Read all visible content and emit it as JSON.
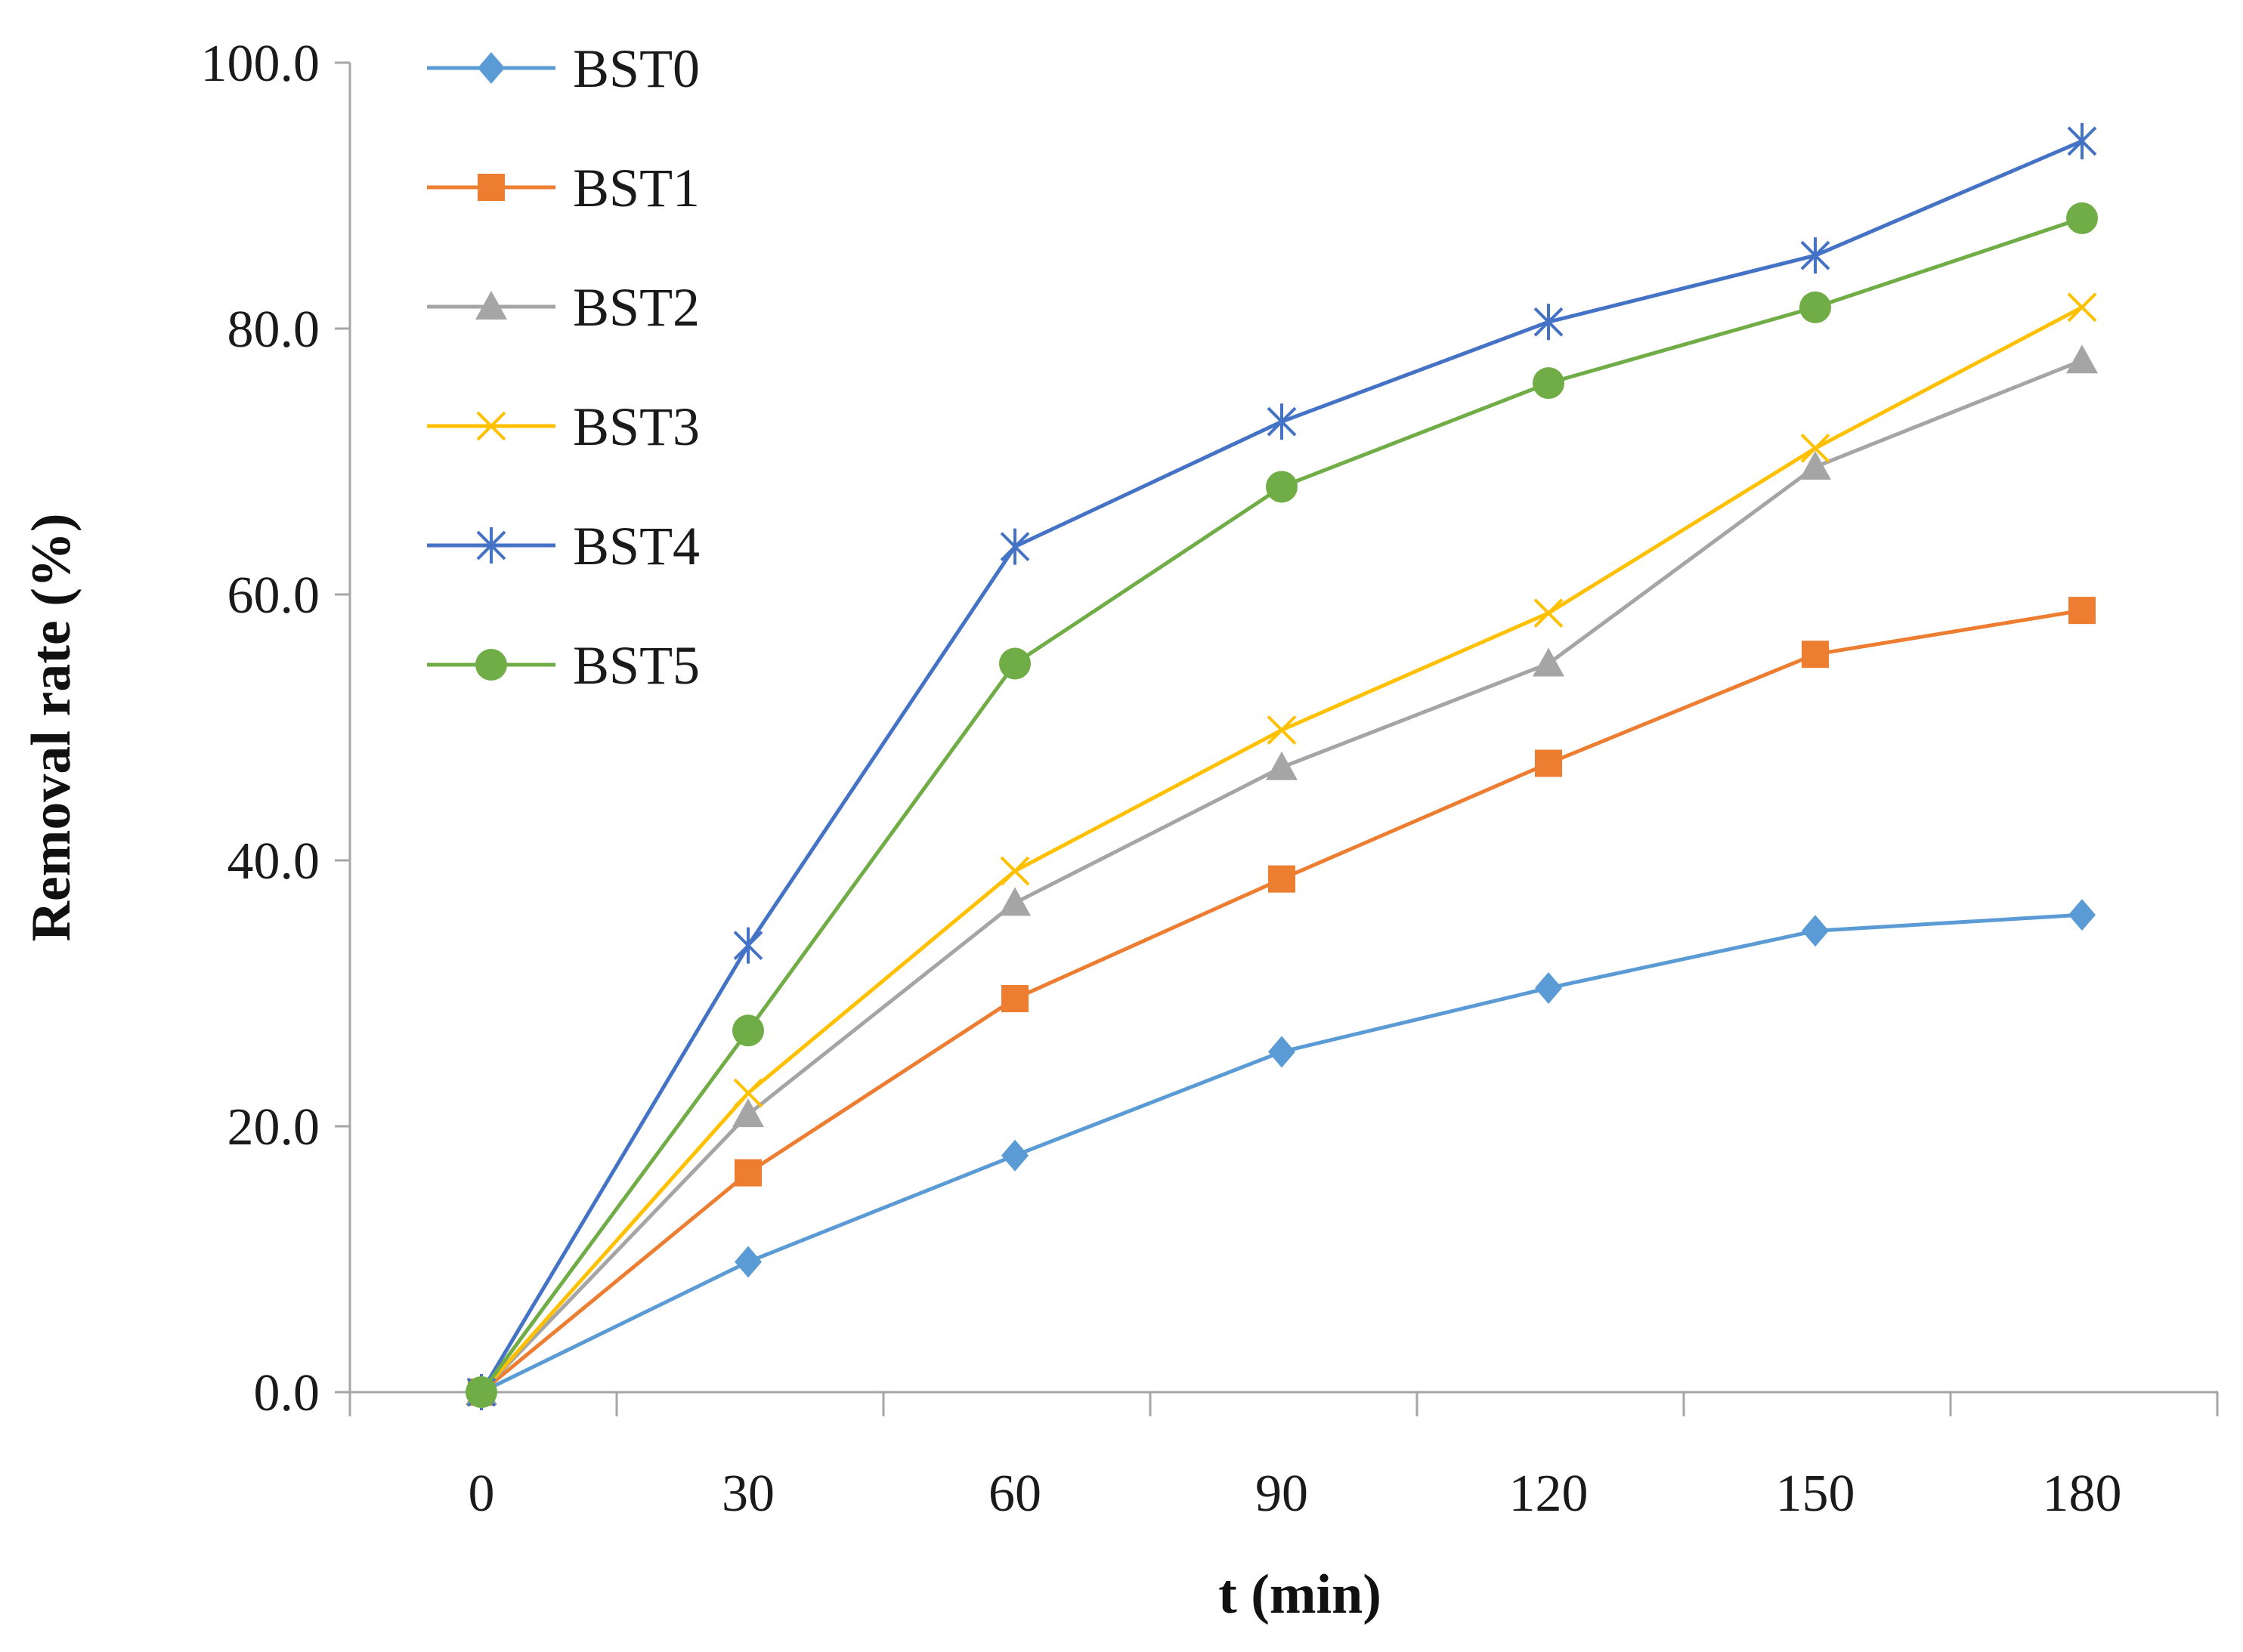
{
  "chart_data": {
    "type": "line",
    "title": "",
    "xlabel": "t (min)",
    "ylabel": "Removal rate (%)",
    "x": [
      0,
      30,
      60,
      90,
      120,
      150,
      180
    ],
    "x_tick_labels": [
      "0",
      "30",
      "60",
      "90",
      "120",
      "150",
      "180"
    ],
    "ylim": [
      0,
      100
    ],
    "y_ticks": [
      0,
      20,
      40,
      60,
      80,
      100
    ],
    "y_tick_labels": [
      "0.0",
      "20.0",
      "40.0",
      "60.0",
      "80.0",
      "100.0"
    ],
    "grid": false,
    "legend_position": "top-left",
    "series": [
      {
        "name": "BST0",
        "color": "#5b9bd5",
        "marker": "diamond",
        "values": [
          0,
          9.8,
          17.8,
          25.6,
          30.4,
          34.7,
          35.9
        ]
      },
      {
        "name": "BST1",
        "color": "#ed7d31",
        "marker": "square",
        "values": [
          0,
          16.5,
          29.6,
          38.6,
          47.3,
          55.5,
          58.8
        ]
      },
      {
        "name": "BST2",
        "color": "#a5a5a5",
        "marker": "triangle",
        "values": [
          0,
          20.9,
          36.8,
          47.0,
          54.8,
          69.6,
          77.6
        ]
      },
      {
        "name": "BST3",
        "color": "#ffc000",
        "marker": "x",
        "values": [
          0,
          22.5,
          39.2,
          49.8,
          58.6,
          71.0,
          81.6
        ]
      },
      {
        "name": "BST4",
        "color": "#4472c4",
        "marker": "star",
        "values": [
          0,
          33.6,
          63.6,
          73.0,
          80.5,
          85.5,
          94.1
        ]
      },
      {
        "name": "BST5",
        "color": "#70ad47",
        "marker": "circle",
        "values": [
          0,
          27.2,
          54.8,
          68.1,
          75.9,
          81.6,
          88.3
        ]
      }
    ]
  }
}
